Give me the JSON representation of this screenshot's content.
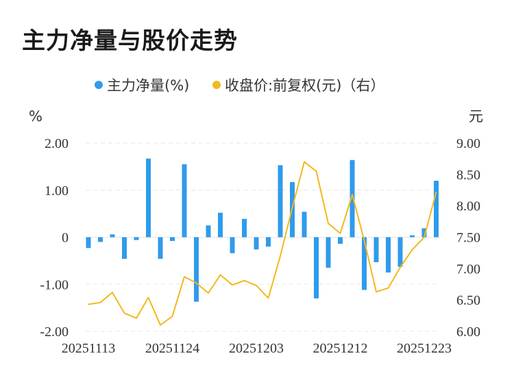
{
  "title": "主力净量与股价走势",
  "colors": {
    "bar": "#2f9bec",
    "line": "#f3b81b",
    "grid": "#e6e6e6",
    "text": "#333333"
  },
  "chart_data": {
    "type": "bar+line",
    "legend": {
      "placement": "top-center",
      "items": [
        "主力净量(%)",
        "收盘价:前复权(元)（右）"
      ]
    },
    "y_left": {
      "unit": "%",
      "ylim": [
        -2,
        2
      ],
      "ticks": [
        2,
        1,
        0,
        -1,
        -2
      ],
      "tick_labels": [
        "2.00",
        "1.00",
        "0",
        "-1.00",
        "-2.00"
      ]
    },
    "y_right": {
      "unit": "元",
      "ylim": [
        6,
        9
      ],
      "ticks": [
        9,
        8.5,
        8,
        7.5,
        7,
        6.5,
        6
      ],
      "tick_labels": [
        "9.00",
        "8.50",
        "8.00",
        "7.50",
        "7.00",
        "6.50",
        "6.00"
      ]
    },
    "x_labels": [
      {
        "index": 0,
        "label": "20251113"
      },
      {
        "index": 7,
        "label": "20251124"
      },
      {
        "index": 14,
        "label": "20251203"
      },
      {
        "index": 21,
        "label": "20251212"
      },
      {
        "index": 28,
        "label": "20251223"
      }
    ],
    "grid": true,
    "series": [
      {
        "name": "主力净量(%)",
        "axis": "left",
        "kind": "bar",
        "values": [
          -0.23,
          -0.1,
          0.06,
          -0.46,
          -0.06,
          1.67,
          -0.46,
          -0.08,
          1.55,
          -1.37,
          0.25,
          0.52,
          -0.34,
          0.39,
          -0.26,
          -0.2,
          1.53,
          1.17,
          0.54,
          -1.3,
          -0.65,
          -0.14,
          1.64,
          -1.12,
          -0.53,
          -0.75,
          -0.63,
          0.04,
          0.19,
          1.2
        ]
      },
      {
        "name": "收盘价:前复权(元)（右）",
        "axis": "right",
        "kind": "line",
        "values": [
          6.43,
          6.46,
          6.62,
          6.29,
          6.21,
          6.54,
          6.1,
          6.24,
          6.87,
          6.77,
          6.61,
          6.9,
          6.74,
          6.81,
          6.73,
          6.53,
          7.2,
          7.97,
          8.7,
          8.55,
          7.72,
          7.56,
          8.18,
          7.45,
          6.63,
          6.69,
          7.02,
          7.3,
          7.5,
          8.22
        ]
      }
    ]
  }
}
